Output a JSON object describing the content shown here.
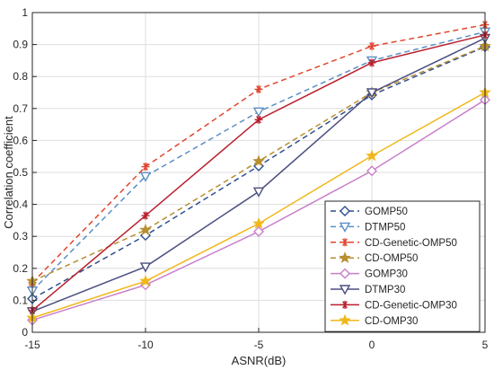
{
  "chart_data": {
    "type": "line",
    "title": "",
    "xlabel": "ASNR(dB)",
    "ylabel": "Correlation coefficient",
    "x": [
      -15,
      -10,
      -5,
      0,
      5
    ],
    "xlim": [
      -15,
      5
    ],
    "ylim": [
      0,
      1
    ],
    "xticks": [
      "-15",
      "-10",
      "-5",
      "0",
      "5"
    ],
    "yticks": [
      "0",
      "0.1",
      "0.2",
      "0.3",
      "0.4",
      "0.5",
      "0.6",
      "0.7",
      "0.8",
      "0.9",
      "1"
    ],
    "grid": true,
    "legend_position": "bottom-right",
    "series": [
      {
        "name": "GOMP50",
        "values": [
          0.105,
          0.303,
          0.52,
          0.742,
          0.893
        ],
        "color": "#2e4f8e",
        "dash": "dashed",
        "marker": "diamond"
      },
      {
        "name": "DTMP50",
        "values": [
          0.13,
          0.488,
          0.69,
          0.85,
          0.94
        ],
        "color": "#5b8fc3",
        "dash": "dashed",
        "marker": "triangle-down"
      },
      {
        "name": "CD-Genetic-OMP50",
        "values": [
          0.155,
          0.518,
          0.76,
          0.895,
          0.962
        ],
        "color": "#e0462f",
        "dash": "dashed",
        "marker": "asterisk"
      },
      {
        "name": "CD-OMP50",
        "values": [
          0.16,
          0.32,
          0.535,
          0.75,
          0.895
        ],
        "color": "#b78f30",
        "dash": "dashed",
        "marker": "star"
      },
      {
        "name": "GOMP30",
        "values": [
          0.038,
          0.148,
          0.315,
          0.505,
          0.727
        ],
        "color": "#c97fc9",
        "dash": "solid",
        "marker": "diamond"
      },
      {
        "name": "DTMP30",
        "values": [
          0.065,
          0.205,
          0.44,
          0.75,
          0.92
        ],
        "color": "#4b4f80",
        "dash": "solid",
        "marker": "triangle-down"
      },
      {
        "name": "CD-Genetic-OMP30",
        "values": [
          0.068,
          0.365,
          0.665,
          0.843,
          0.93
        ],
        "color": "#b8202e",
        "dash": "solid",
        "marker": "asterisk"
      },
      {
        "name": "CD-OMP30",
        "values": [
          0.045,
          0.16,
          0.34,
          0.552,
          0.75
        ],
        "color": "#efb81a",
        "dash": "solid",
        "marker": "star"
      }
    ]
  }
}
